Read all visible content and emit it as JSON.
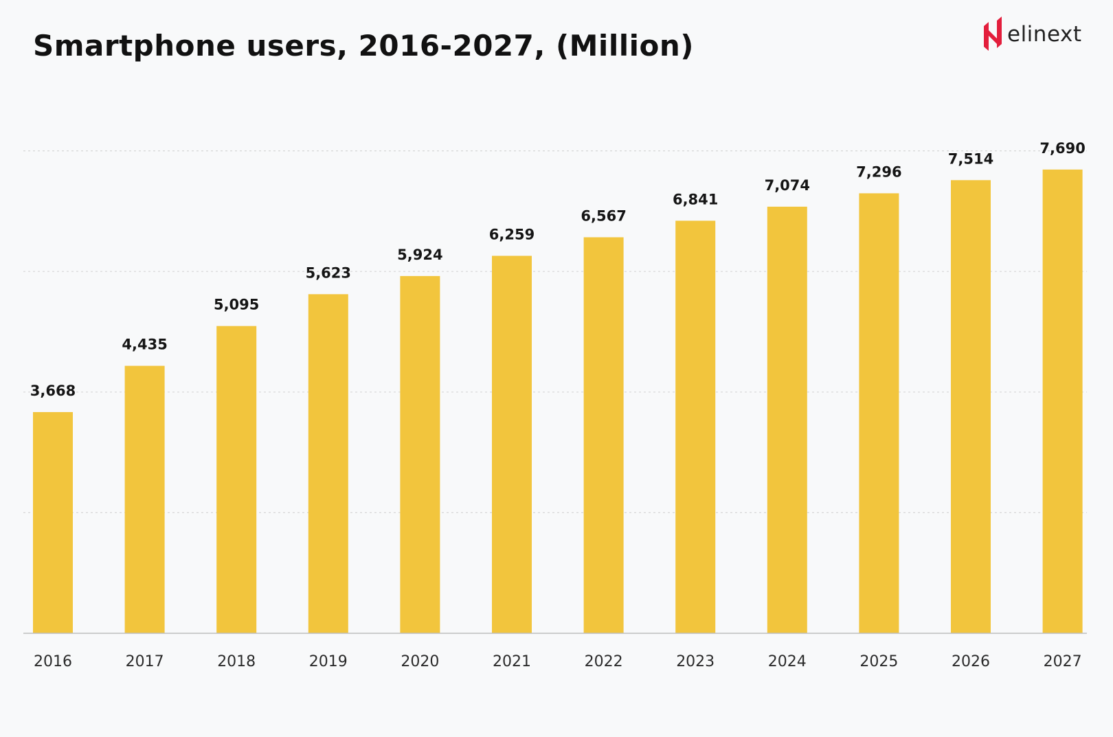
{
  "header": {
    "title": "Smartphone users, 2016-2027, (Million)"
  },
  "logo": {
    "text": "elinext",
    "icon": "elinext-mark-icon",
    "color": "#e31e3c"
  },
  "colors": {
    "bar": "#f2c53d",
    "grid": "#d6d6d6",
    "axis": "#bdbdbd"
  },
  "chart_data": {
    "type": "bar",
    "title": "Smartphone users, 2016-2027, (Million)",
    "xlabel": "",
    "ylabel": "",
    "ylim": [
      0,
      8000
    ],
    "grid": true,
    "gridlines": [
      2000,
      4000,
      6000,
      8000
    ],
    "categories": [
      "2016",
      "2017",
      "2018",
      "2019",
      "2020",
      "2021",
      "2022",
      "2023",
      "2024",
      "2025",
      "2026",
      "2027"
    ],
    "values": [
      3668,
      4435,
      5095,
      5623,
      5924,
      6259,
      6567,
      6841,
      7074,
      7296,
      7514,
      7690
    ],
    "value_labels": [
      "3,668",
      "4,435",
      "5,095",
      "5,623",
      "5,924",
      "6,259",
      "6,567",
      "6,841",
      "7,074",
      "7,296",
      "7,514",
      "7,690"
    ]
  }
}
